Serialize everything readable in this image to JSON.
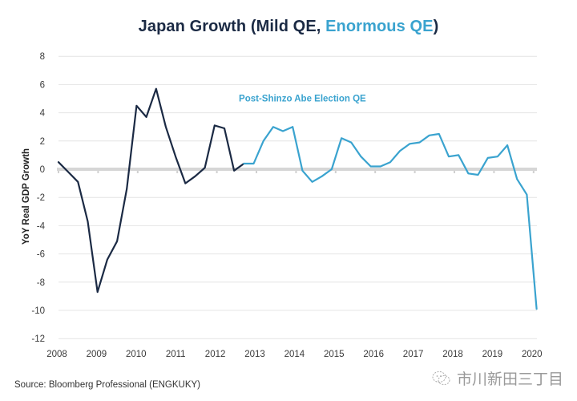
{
  "chart_data": {
    "type": "line",
    "title": "Japan Growth (Mild QE, Enormous QE)",
    "title_parts": [
      {
        "text": "Japan Growth (Mild QE, ",
        "color": "#1b2a44"
      },
      {
        "text": "Enormous QE",
        "color": "#3aa3cf"
      },
      {
        "text": ")",
        "color": "#1b2a44"
      }
    ],
    "xlabel": "",
    "ylabel": "YoY Real GDP Growth",
    "ylim": [
      -12,
      8
    ],
    "yticks": [
      8,
      6,
      4,
      2,
      0,
      -2,
      -4,
      -6,
      -8,
      -10,
      -12
    ],
    "ytick_labels": [
      "8",
      "6",
      "4",
      "2",
      "0",
      "-2",
      "-4",
      "-6",
      "-8",
      "-10",
      "-12"
    ],
    "xlim": [
      2008,
      2020.25
    ],
    "xticks": [
      2008,
      2009,
      2010,
      2011,
      2012,
      2013,
      2014,
      2015,
      2016,
      2017,
      2018,
      2019,
      2020
    ],
    "xtick_labels": [
      "2008",
      "2009",
      "2010",
      "2011",
      "2012",
      "2013",
      "2014",
      "2015",
      "2016",
      "2017",
      "2018",
      "2019",
      "2020"
    ],
    "grid": true,
    "annotations": [
      {
        "text": "Post-Shinzo Abe Election QE",
        "x": 2014.25,
        "y": 4.8,
        "color": "#3aa3cf"
      }
    ],
    "series": [
      {
        "name": "Mild QE",
        "color": "#1b2a44",
        "x": [
          2008.0,
          2008.25,
          2008.5,
          2008.75,
          2009.0,
          2009.25,
          2009.5,
          2009.75,
          2010.0,
          2010.25,
          2010.5,
          2010.75,
          2011.0,
          2011.25,
          2011.5,
          2011.75,
          2012.0,
          2012.25,
          2012.5,
          2012.75
        ],
        "values": [
          0.5,
          -0.2,
          -0.9,
          -3.7,
          -8.7,
          -6.4,
          -5.1,
          -1.4,
          4.5,
          3.7,
          5.7,
          3.0,
          0.9,
          -1.0,
          -0.5,
          0.1,
          3.1,
          2.9,
          -0.1,
          0.4
        ]
      },
      {
        "name": "Enormous QE",
        "color": "#3aa3cf",
        "x": [
          2012.75,
          2013.0,
          2013.25,
          2013.5,
          2013.75,
          2014.0,
          2014.25,
          2014.5,
          2014.75,
          2015.0,
          2015.25,
          2015.5,
          2015.75,
          2016.0,
          2016.25,
          2016.5,
          2016.75,
          2017.0,
          2017.25,
          2017.5,
          2017.75,
          2018.0,
          2018.25,
          2018.5,
          2018.75,
          2019.0,
          2019.25,
          2019.5,
          2019.75,
          2020.0,
          2020.25
        ],
        "values": [
          0.4,
          0.4,
          2.0,
          3.0,
          2.7,
          3.0,
          -0.1,
          -0.9,
          -0.5,
          0.0,
          2.2,
          1.9,
          0.9,
          0.2,
          0.2,
          0.5,
          1.3,
          1.8,
          1.9,
          2.4,
          2.5,
          0.9,
          1.0,
          -0.3,
          -0.4,
          0.8,
          0.9,
          1.7,
          -0.7,
          -1.8,
          -9.9
        ]
      }
    ]
  },
  "footer": {
    "source": "Source: Bloomberg Professional (ENGKUKY)",
    "watermark": "市川新田三丁目",
    "watermark_icon": "wechat-icon"
  }
}
